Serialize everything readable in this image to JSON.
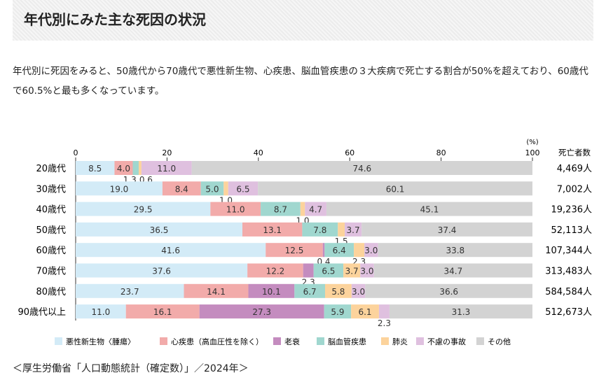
{
  "header": {
    "title": "年代別にみた主な死因の状況"
  },
  "intro": "年代別に死因をみると、50歳代から70歳代で悪性新生物、心疾患、脳血管疾患の３大疾病で死亡する割合が50%を超えており、60歳代で60.5%と最も多くなっています。",
  "source": "＜厚生労働省「人口動態統計（確定数）」／2024年＞",
  "chart_data": {
    "type": "bar",
    "orientation": "horizontal",
    "stacked": true,
    "unit_label": "(%)",
    "xlim": [
      0,
      100
    ],
    "xticks": [
      0,
      20,
      40,
      60,
      80,
      100
    ],
    "right_column_header": "死亡者数",
    "categories": [
      "20歳代",
      "30歳代",
      "40歳代",
      "50歳代",
      "60歳代",
      "70歳代",
      "80歳代",
      "90歳代以上"
    ],
    "deaths": [
      "4,469人",
      "7,002人",
      "19,236人",
      "52,113人",
      "107,344人",
      "313,483人",
      "584,584人",
      "512,673人"
    ],
    "legend_position": "bottom",
    "series": [
      {
        "name": "悪性新生物〈腫瘍〉",
        "color": "#d3ebf7",
        "values": [
          8.5,
          19.0,
          29.5,
          36.5,
          41.6,
          37.6,
          23.7,
          11.0
        ]
      },
      {
        "name": "心疾患（高血圧性を除く）",
        "color": "#f2abaa",
        "values": [
          4.0,
          8.4,
          11.0,
          13.1,
          12.5,
          12.2,
          14.1,
          16.1
        ]
      },
      {
        "name": "老衰",
        "color": "#c48cbf",
        "values": [
          0,
          0,
          0,
          0,
          0.4,
          2.3,
          10.1,
          27.3
        ]
      },
      {
        "name": "脳血管疾患",
        "color": "#a0d7cf",
        "values": [
          1.3,
          5.0,
          8.7,
          7.8,
          6.4,
          6.5,
          6.7,
          5.9
        ]
      },
      {
        "name": "肺炎",
        "color": "#fcd39c",
        "values": [
          0.6,
          1.0,
          1.0,
          1.5,
          2.3,
          3.7,
          5.8,
          6.1
        ]
      },
      {
        "name": "不慮の事故",
        "color": "#dfc0df",
        "values": [
          11.0,
          6.5,
          4.7,
          3.7,
          3.0,
          3.0,
          3.0,
          2.3
        ]
      },
      {
        "name": "その他",
        "color": "#d3d3d3",
        "values": [
          74.6,
          60.1,
          45.1,
          37.4,
          33.8,
          34.7,
          36.6,
          31.3
        ]
      }
    ]
  }
}
